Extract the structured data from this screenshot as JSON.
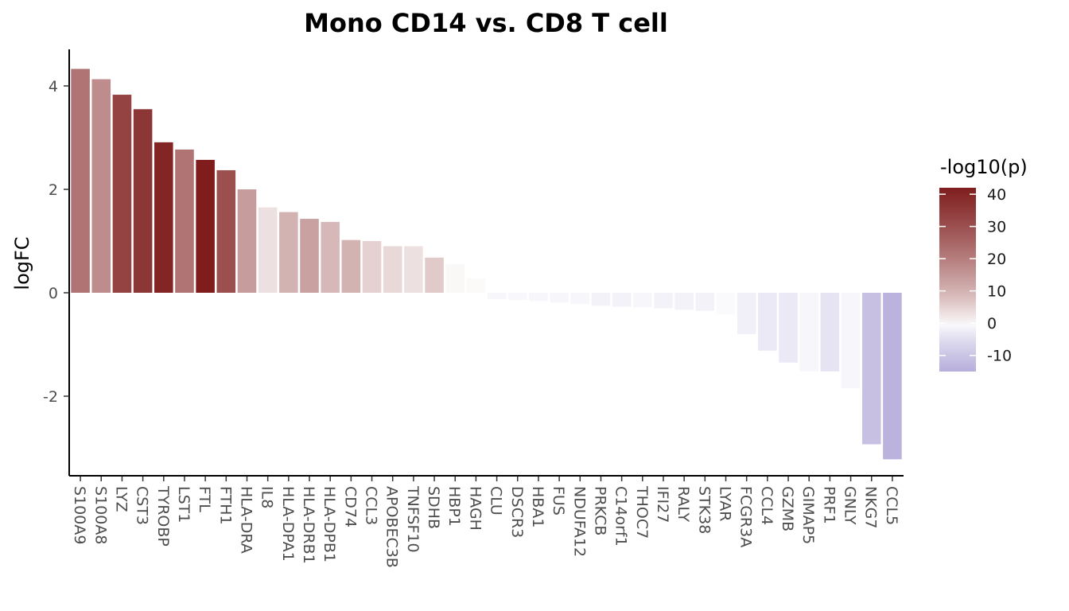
{
  "chart_data": {
    "type": "bar",
    "title": "Mono CD14 vs. CD8 T cell",
    "xlabel": "",
    "ylabel": "logFC",
    "ylim": [
      -3.5,
      4.7
    ],
    "y_ticks": [
      4,
      2,
      0,
      -2
    ],
    "y_tick_labels": [
      "4",
      "2",
      "0",
      "-2"
    ],
    "grid": false,
    "categories": [
      "S100A9",
      "S100A8",
      "LYZ",
      "CST3",
      "TYROBP",
      "LST1",
      "FTL",
      "FTH1",
      "HLA-DRA",
      "IL8",
      "HLA-DPA1",
      "HLA-DRB1",
      "HLA-DPB1",
      "CD74",
      "CCL3",
      "APOBEC3B",
      "TNFSF10",
      "SDHB",
      "HBP1",
      "HAGH",
      "CLU",
      "DSCR3",
      "HBA1",
      "FUS",
      "NDUFA12",
      "PRKCB",
      "C14orf1",
      "THOC7",
      "IFI27",
      "RALY",
      "STK38",
      "LYAR",
      "FCGR3A",
      "CCL4",
      "GZMB",
      "GIMAP5",
      "PRF1",
      "GNLY",
      "NKG7",
      "CCL5"
    ],
    "values": [
      4.33,
      4.13,
      3.83,
      3.55,
      2.91,
      2.77,
      2.57,
      2.37,
      2.0,
      1.65,
      1.56,
      1.43,
      1.37,
      1.02,
      1.0,
      0.9,
      0.9,
      0.68,
      0.55,
      0.28,
      -0.12,
      -0.14,
      -0.16,
      -0.19,
      -0.22,
      -0.25,
      -0.27,
      -0.28,
      -0.3,
      -0.33,
      -0.35,
      -0.42,
      -0.8,
      -1.12,
      -1.35,
      -1.52,
      -1.52,
      -1.85,
      -2.93,
      -3.22
    ],
    "color_values": [
      22,
      17,
      33,
      36,
      40,
      22,
      44,
      30,
      14,
      3,
      10,
      13,
      9,
      10,
      5,
      4,
      3,
      6,
      0.5,
      0.3,
      -1,
      -0.8,
      -1,
      -1,
      -1,
      -1.5,
      -1.5,
      -1,
      -1.5,
      -1.5,
      -1.5,
      -0.5,
      -2,
      -3,
      -3,
      -1,
      -4,
      -1,
      -11,
      -14
    ],
    "legend": {
      "title": "-log10(p)",
      "position": "right",
      "ticks": [
        40,
        30,
        20,
        10,
        0,
        -10
      ],
      "tick_labels": [
        "40",
        "30",
        "20",
        "10",
        "0",
        "-10"
      ],
      "range": [
        -15,
        42
      ]
    },
    "colors": {
      "high": "#7f1d1d",
      "mid": "#ffffff",
      "low": "#b7aedb",
      "axis": "#000000"
    }
  }
}
